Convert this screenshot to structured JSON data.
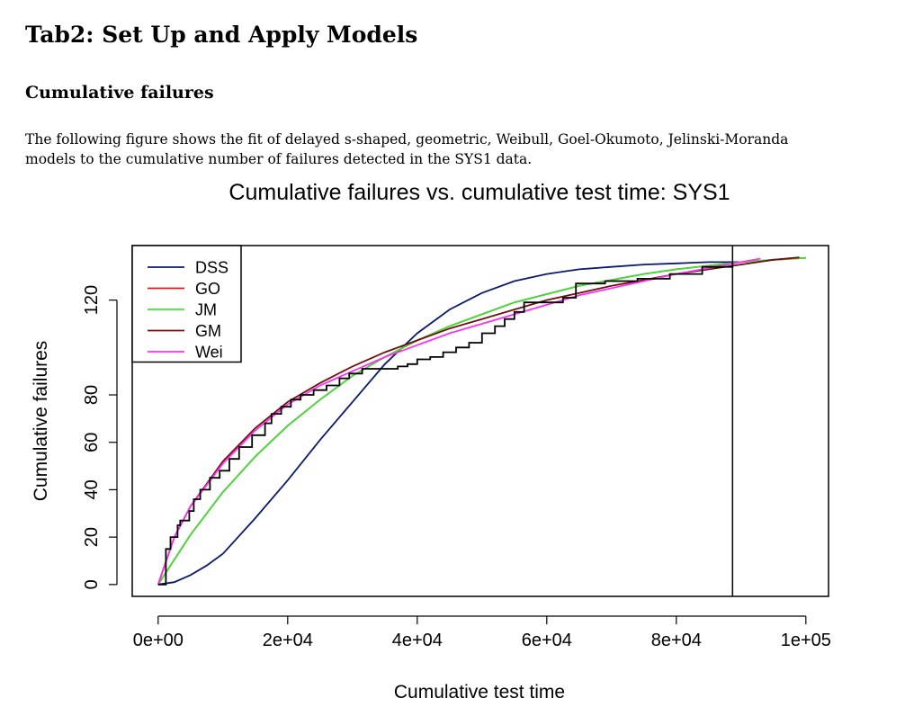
{
  "document": {
    "title": "Tab2: Set Up and Apply Models",
    "subtitle": "Cumulative failures",
    "paragraph_line1": "The following figure shows the fit of delayed s-shaped, geometric, Weibull, Goel-Okumoto, Jelinski-Moranda",
    "paragraph_line2": "models to the cumulative number of failures detected in the SYS1 data."
  },
  "chart_data": {
    "type": "line",
    "title": "Cumulative failures vs. cumulative test time: SYS1",
    "xlabel": "Cumulative test time",
    "ylabel": "Cumulative failures",
    "xlim": [
      -4000,
      103500
    ],
    "ylim": [
      -5,
      143
    ],
    "x_ticks": [
      {
        "value": 0,
        "label": "0e+00"
      },
      {
        "value": 20000,
        "label": "2e+04"
      },
      {
        "value": 40000,
        "label": "4e+04"
      },
      {
        "value": 60000,
        "label": "6e+04"
      },
      {
        "value": 80000,
        "label": "8e+04"
      },
      {
        "value": 100000,
        "label": "1e+05"
      }
    ],
    "y_ticks": [
      {
        "value": 0,
        "label": "0"
      },
      {
        "value": 20,
        "label": "20"
      },
      {
        "value": 40,
        "label": "40"
      },
      {
        "value": 60,
        "label": "60"
      },
      {
        "value": 80,
        "label": "80"
      },
      {
        "value": 120,
        "label": "120"
      }
    ],
    "vline_x": 88682,
    "legend_position": "top-left",
    "observed": {
      "color": "#000000",
      "x": [
        0,
        1200,
        1900,
        3000,
        3400,
        4800,
        5500,
        6500,
        8000,
        9500,
        11000,
        12500,
        14500,
        16500,
        17500,
        19000,
        20500,
        22000,
        24000,
        26000,
        28000,
        29500,
        31500,
        33500,
        35000,
        37000,
        38500,
        40000,
        42000,
        44000,
        46000,
        48000,
        50000,
        52000,
        53500,
        55000,
        56500,
        62500,
        64500,
        69000,
        74000,
        79000,
        84000,
        88682
      ],
      "y": [
        0,
        15,
        20,
        25,
        27,
        31,
        36,
        40,
        45,
        48,
        53,
        58,
        63,
        68,
        72,
        75,
        78,
        80,
        82,
        84,
        87,
        89,
        91,
        91,
        91,
        92,
        93,
        95,
        96,
        98,
        100,
        102,
        106,
        109,
        112,
        115,
        119,
        121,
        127,
        128,
        129,
        131,
        134,
        136
      ]
    },
    "series": [
      {
        "name": "DSS",
        "color": "#0b1a6e",
        "x": [
          0,
          2500,
          5000,
          7500,
          10000,
          15000,
          20000,
          25000,
          30000,
          35000,
          40000,
          45000,
          50000,
          55000,
          60000,
          65000,
          70000,
          75000,
          80000,
          85000,
          90000
        ],
        "y": [
          0,
          1,
          4,
          8,
          13,
          28,
          44,
          61,
          77,
          93,
          106,
          116,
          123,
          128,
          131,
          133,
          134,
          135,
          135.5,
          136,
          136
        ]
      },
      {
        "name": "GO",
        "color": "#e01a1a",
        "x": [
          0,
          5000,
          10000,
          15000,
          20000,
          25000,
          30000,
          35000,
          40000,
          45000,
          50000,
          55000,
          60000,
          65000,
          70000,
          75000,
          80000,
          85000,
          90000,
          95000,
          100000
        ],
        "y": [
          0,
          21,
          39,
          54,
          67,
          78,
          88,
          96,
          103,
          109,
          114,
          119,
          122.5,
          126,
          128.5,
          131,
          133,
          134.5,
          136,
          137,
          137.8
        ]
      },
      {
        "name": "JM",
        "color": "#3ee03a",
        "x": [
          0,
          5000,
          10000,
          15000,
          20000,
          25000,
          30000,
          35000,
          40000,
          45000,
          50000,
          55000,
          60000,
          65000,
          70000,
          75000,
          80000,
          85000,
          90000,
          95000,
          100000
        ],
        "y": [
          0,
          21,
          39,
          54,
          67,
          78,
          88,
          96,
          103,
          109,
          114,
          119,
          122.5,
          126,
          128.5,
          131,
          133,
          134.5,
          136,
          137,
          137.8
        ]
      },
      {
        "name": "GM",
        "color": "#6e1010",
        "x": [
          0,
          2500,
          5000,
          10000,
          15000,
          20000,
          25000,
          30000,
          35000,
          40000,
          45000,
          50000,
          55000,
          60000,
          65000,
          70000,
          75000,
          80000,
          85000,
          90000,
          95000,
          99000
        ],
        "y": [
          0,
          20,
          33,
          52,
          66,
          77,
          85,
          92,
          98,
          103,
          108,
          112,
          116,
          120,
          123,
          126,
          128.5,
          131,
          133,
          135,
          137,
          138
        ]
      },
      {
        "name": "Wei",
        "color": "#ff2ef0",
        "x": [
          0,
          2500,
          5000,
          10000,
          15000,
          20000,
          25000,
          30000,
          35000,
          40000,
          45000,
          50000,
          55000,
          60000,
          65000,
          70000,
          75000,
          80000,
          85000,
          90000,
          93000
        ],
        "y": [
          0,
          20,
          33,
          51,
          65,
          76,
          84,
          90,
          96,
          101,
          106,
          110,
          114,
          118,
          122,
          125,
          128,
          131,
          133.5,
          136,
          137.5
        ]
      }
    ]
  }
}
